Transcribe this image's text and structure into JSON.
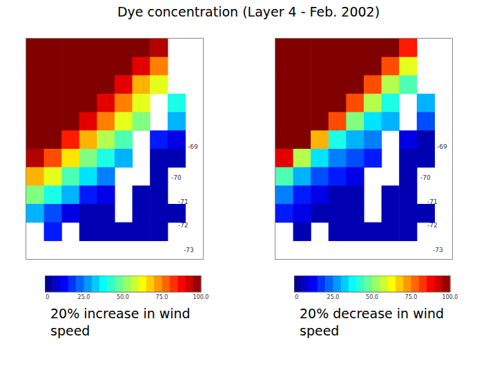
{
  "title": "Dye concentration (Layer 4 - Feb. 2002)",
  "chart_data": [
    {
      "type": "heatmap",
      "xlabel": "20% increase in wind speed",
      "tick_labels": false,
      "annotations": [
        "-69",
        "-70",
        "-71",
        "-72",
        "-73"
      ],
      "cells": [
        [
          100,
          100,
          100,
          100,
          100,
          100,
          100,
          95,
          null,
          null
        ],
        [
          100,
          100,
          100,
          100,
          100,
          100,
          90,
          75,
          null,
          null
        ],
        [
          100,
          100,
          100,
          100,
          100,
          90,
          70,
          60,
          null,
          null
        ],
        [
          100,
          100,
          100,
          100,
          90,
          75,
          60,
          null,
          40,
          null
        ],
        [
          100,
          100,
          100,
          90,
          75,
          60,
          50,
          null,
          30,
          null
        ],
        [
          100,
          100,
          85,
          70,
          55,
          45,
          null,
          15,
          10,
          null
        ],
        [
          95,
          80,
          65,
          50,
          40,
          30,
          null,
          5,
          5,
          null
        ],
        [
          70,
          60,
          45,
          35,
          25,
          null,
          null,
          5,
          null,
          null
        ],
        [
          50,
          40,
          30,
          15,
          10,
          null,
          5,
          5,
          null,
          null
        ],
        [
          30,
          20,
          10,
          5,
          5,
          null,
          5,
          5,
          5,
          null
        ],
        [
          null,
          15,
          null,
          5,
          5,
          5,
          5,
          5,
          null,
          null
        ],
        [
          null,
          null,
          null,
          null,
          null,
          null,
          null,
          null,
          null,
          null
        ]
      ],
      "color_range": [
        0,
        100
      ],
      "color_ticks": [
        {
          "value": 0,
          "label": "0.0"
        },
        {
          "value": 25,
          "label": "25.0"
        },
        {
          "value": 50,
          "label": "50.0"
        },
        {
          "value": 75,
          "label": "75.0"
        },
        {
          "value": 100,
          "label": "100.0"
        }
      ]
    },
    {
      "type": "heatmap",
      "xlabel": "20% decrease in wind speed",
      "tick_labels": false,
      "annotations": [
        "-69",
        "-70",
        "-71",
        "-72",
        "-73"
      ],
      "cells": [
        [
          100,
          100,
          100,
          100,
          100,
          100,
          100,
          85,
          null,
          null
        ],
        [
          100,
          100,
          100,
          100,
          100,
          100,
          80,
          60,
          null,
          null
        ],
        [
          100,
          100,
          100,
          100,
          100,
          80,
          55,
          45,
          null,
          null
        ],
        [
          100,
          100,
          100,
          100,
          80,
          55,
          40,
          null,
          30,
          null
        ],
        [
          100,
          100,
          100,
          80,
          50,
          35,
          30,
          null,
          20,
          null
        ],
        [
          100,
          100,
          70,
          40,
          30,
          25,
          null,
          10,
          5,
          null
        ],
        [
          90,
          55,
          35,
          25,
          20,
          15,
          null,
          5,
          5,
          null
        ],
        [
          45,
          30,
          20,
          15,
          10,
          null,
          null,
          5,
          null,
          null
        ],
        [
          25,
          15,
          10,
          5,
          5,
          null,
          5,
          5,
          null,
          null
        ],
        [
          15,
          10,
          5,
          5,
          5,
          null,
          5,
          5,
          5,
          null
        ],
        [
          null,
          5,
          null,
          5,
          5,
          5,
          5,
          5,
          null,
          null
        ],
        [
          null,
          null,
          null,
          null,
          null,
          null,
          null,
          null,
          null,
          null
        ]
      ],
      "color_range": [
        0,
        100
      ],
      "color_ticks": [
        {
          "value": 0,
          "label": "0.0"
        },
        {
          "value": 25,
          "label": "25.0"
        },
        {
          "value": 50,
          "label": "50.0"
        },
        {
          "value": 75,
          "label": "75.0"
        },
        {
          "value": 100,
          "label": "100.0"
        }
      ]
    }
  ]
}
